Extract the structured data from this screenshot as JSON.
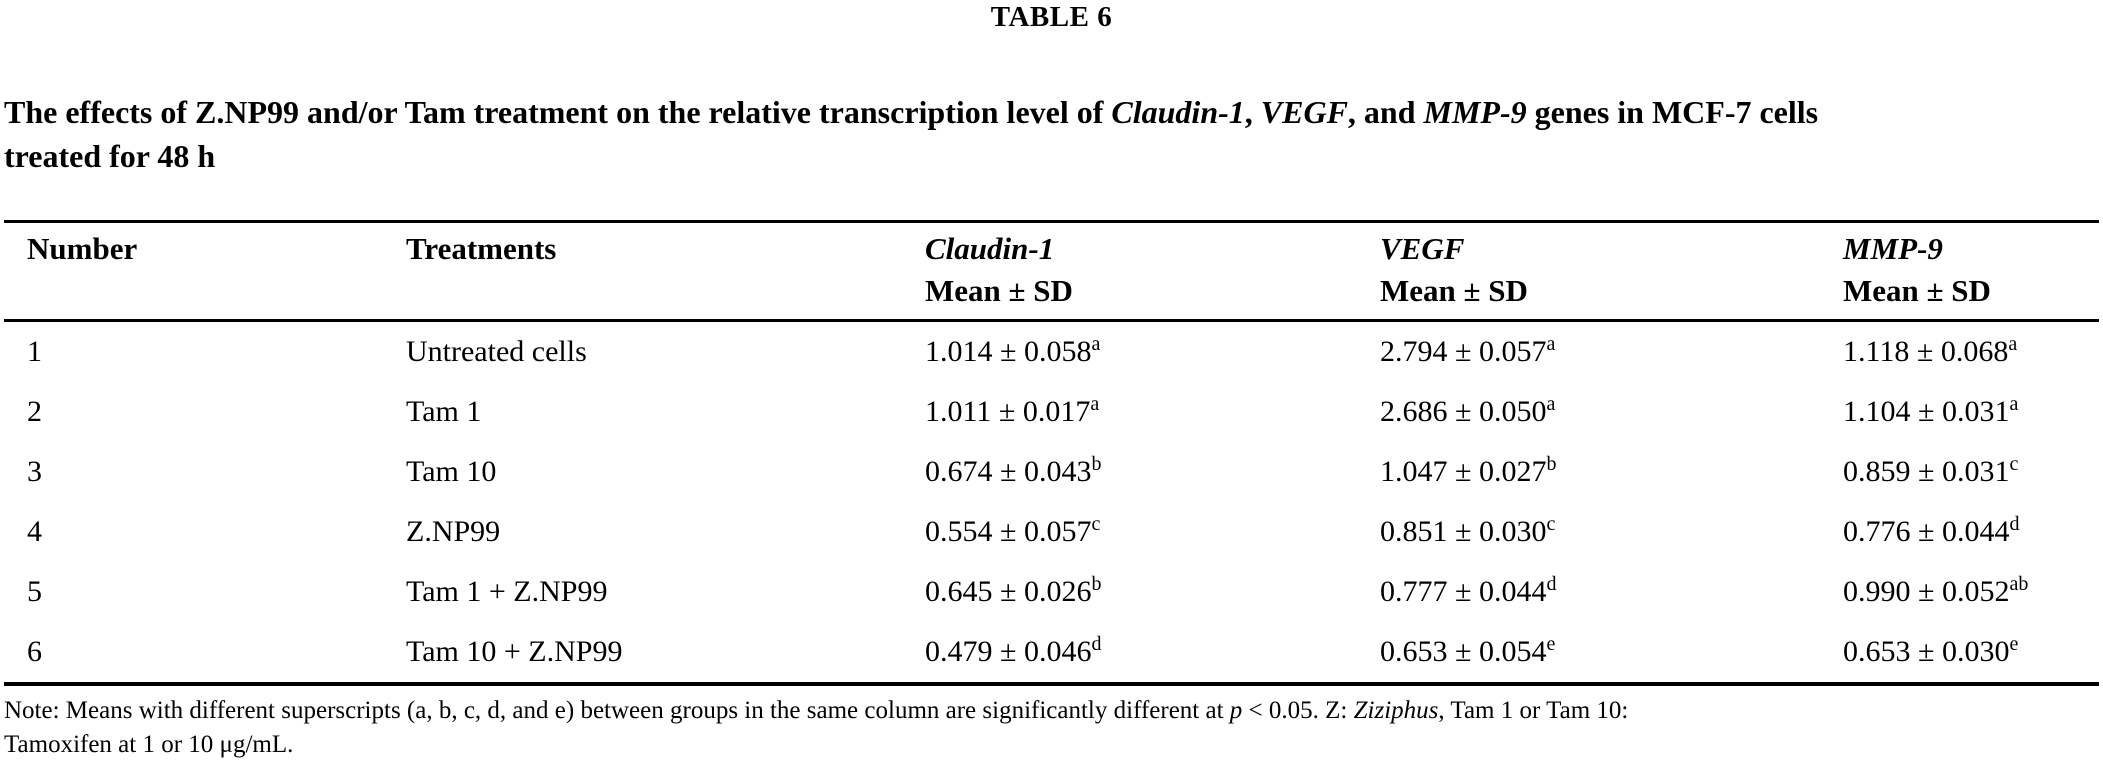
{
  "header": {
    "table_label": "TABLE 6"
  },
  "caption": {
    "segments": [
      {
        "text": "The effects of Z.NP99 and/or Tam treatment on the relative transcription level of ",
        "italic": false
      },
      {
        "text": "Claudin-1",
        "italic": true
      },
      {
        "text": ", ",
        "italic": false
      },
      {
        "text": "VEGF",
        "italic": true
      },
      {
        "text": ", and ",
        "italic": false
      },
      {
        "text": "MMP-9",
        "italic": true
      },
      {
        "text": " genes in MCF-7 cells",
        "italic": false
      },
      {
        "text": "treated for 48 h",
        "italic": false
      }
    ]
  },
  "table": {
    "columns": [
      {
        "label": "Number",
        "sub": "",
        "italic": false
      },
      {
        "label": "Treatments",
        "sub": "",
        "italic": false
      },
      {
        "label": "Claudin-1",
        "sub": "Mean ± SD",
        "italic": true
      },
      {
        "label": "VEGF",
        "sub": "Mean ± SD",
        "italic": true
      },
      {
        "label": "MMP-9",
        "sub": "Mean ± SD",
        "italic": true
      }
    ],
    "rows": [
      {
        "number": "1",
        "treatment": "Untreated cells",
        "claudin1": {
          "value": "1.014 ± 0.058",
          "sup": "a"
        },
        "vegf": {
          "value": "2.794 ± 0.057",
          "sup": "a"
        },
        "mmp9": {
          "value": "1.118 ± 0.068",
          "sup": "a"
        }
      },
      {
        "number": "2",
        "treatment": "Tam 1",
        "claudin1": {
          "value": "1.011 ± 0.017",
          "sup": "a"
        },
        "vegf": {
          "value": "2.686 ± 0.050",
          "sup": "a"
        },
        "mmp9": {
          "value": "1.104 ± 0.031",
          "sup": "a"
        }
      },
      {
        "number": "3",
        "treatment": "Tam 10",
        "claudin1": {
          "value": "0.674 ± 0.043",
          "sup": "b"
        },
        "vegf": {
          "value": "1.047 ± 0.027",
          "sup": "b"
        },
        "mmp9": {
          "value": "0.859 ± 0.031",
          "sup": "c"
        }
      },
      {
        "number": "4",
        "treatment": "Z.NP99",
        "claudin1": {
          "value": "0.554 ± 0.057",
          "sup": "c"
        },
        "vegf": {
          "value": "0.851 ± 0.030",
          "sup": "c"
        },
        "mmp9": {
          "value": "0.776 ± 0.044",
          "sup": "d"
        }
      },
      {
        "number": "5",
        "treatment": "Tam 1 + Z.NP99",
        "claudin1": {
          "value": "0.645 ± 0.026",
          "sup": "b"
        },
        "vegf": {
          "value": "0.777 ± 0.044",
          "sup": "d"
        },
        "mmp9": {
          "value": "0.990 ± 0.052",
          "sup": "ab"
        }
      },
      {
        "number": "6",
        "treatment": "Tam 10 + Z.NP99",
        "claudin1": {
          "value": "0.479 ± 0.046",
          "sup": "d"
        },
        "vegf": {
          "value": "0.653 ± 0.054",
          "sup": "e"
        },
        "mmp9": {
          "value": "0.653 ± 0.030",
          "sup": "e"
        }
      }
    ]
  },
  "note": {
    "segments": [
      {
        "text": "Note: Means with different superscripts (a, b, c, d, and e) between groups in the same column are significantly different at ",
        "italic": false
      },
      {
        "text": "p",
        "italic": true
      },
      {
        "text": " < 0.05. Z: ",
        "italic": false
      },
      {
        "text": "Ziziphus",
        "italic": true
      },
      {
        "text": ", Tam 1 or Tam 10:",
        "italic": false
      },
      {
        "text": "Tamoxifen at 1 or 10 μg/mL.",
        "italic": false
      }
    ]
  }
}
